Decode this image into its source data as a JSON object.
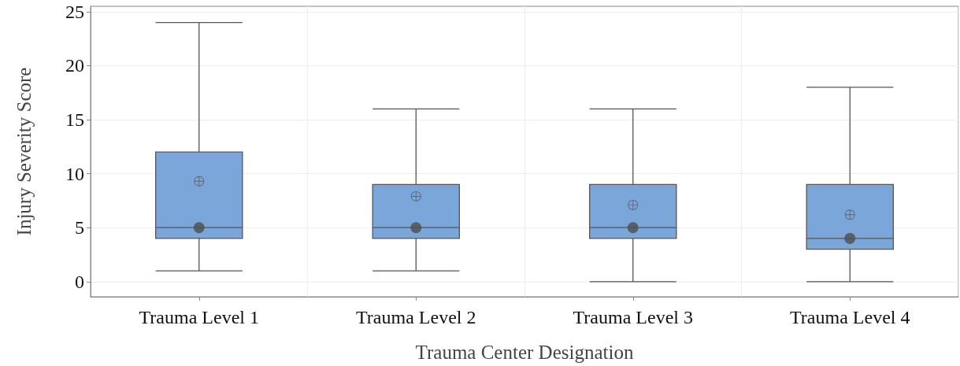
{
  "chart_data": {
    "type": "box",
    "xlabel": "Trauma Center Designation",
    "ylabel": "Injury Severity Score",
    "categories": [
      "Trauma Level 1",
      "Trauma Level 2",
      "Trauma Level 3",
      "Trauma Level 4"
    ],
    "color": "#7ba6d9",
    "boxes": [
      {
        "low": 1,
        "q1": 4,
        "median": 5,
        "q3": 12,
        "high": 24,
        "mean": 9.3
      },
      {
        "low": 1,
        "q1": 4,
        "median": 5,
        "q3": 9,
        "high": 16,
        "mean": 7.9
      },
      {
        "low": 0,
        "q1": 4,
        "median": 5,
        "q3": 9,
        "high": 16,
        "mean": 7.1
      },
      {
        "low": 0,
        "q1": 3,
        "median": 4,
        "q3": 9,
        "high": 18,
        "mean": 6.2
      }
    ],
    "series": [
      {
        "type": "scatter",
        "color": "#4d4d4d",
        "marker": "circle",
        "x": [
          "Trauma Level 1",
          "Trauma Level 2",
          "Trauma Level 3",
          "Trauma Level 4"
        ],
        "values": [
          5,
          5,
          5,
          4
        ]
      }
    ],
    "ylim": [
      -1.4,
      25.5
    ],
    "yticks": [
      0,
      5,
      10,
      15,
      20,
      25
    ],
    "grid": true
  }
}
